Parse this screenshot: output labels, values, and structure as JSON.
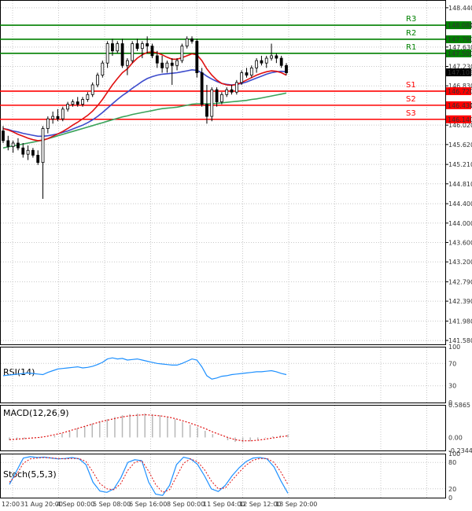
{
  "chart_data": [
    {
      "type": "candlestick",
      "panel": "price",
      "y_ticks": [
        "148.440",
        "148.080",
        "147.630",
        "147.230",
        "146.830",
        "146.430",
        "146.020",
        "145.620",
        "145.210",
        "144.810",
        "144.400",
        "144.000",
        "143.600",
        "143.200",
        "142.790",
        "142.390",
        "141.980",
        "141.580"
      ],
      "ylim": [
        141.5,
        148.6
      ],
      "current_price": "147.108",
      "x_labels": [
        "12:00",
        "31 Aug 20:00",
        "4 Sep 00:00",
        "5 Sep 08:00",
        "6 Sep 16:00",
        "8 Sep 00:00",
        "11 Sep 04:00",
        "12 Sep 12:00",
        "13 Sep 20:00"
      ],
      "levels": [
        {
          "name": "R3",
          "value": 148.08,
          "label": "148.080",
          "color": "#008000"
        },
        {
          "name": "R2",
          "value": 147.79,
          "label": "147.790",
          "color": "#008000"
        },
        {
          "name": "R1",
          "value": 147.5,
          "label": "147.500",
          "color": "#008000"
        },
        {
          "name": "S1",
          "value": 146.72,
          "label": "146.720",
          "color": "#ff0000"
        },
        {
          "name": "S2",
          "value": 146.43,
          "label": "146.430",
          "color": "#ff0000"
        },
        {
          "name": "S3",
          "value": 146.14,
          "label": "146.140",
          "color": "#ff0000"
        }
      ],
      "candles": [
        {
          "o": 145.9,
          "h": 146.0,
          "l": 145.65,
          "c": 145.7
        },
        {
          "o": 145.7,
          "h": 145.8,
          "l": 145.5,
          "c": 145.58
        },
        {
          "o": 145.58,
          "h": 145.7,
          "l": 145.45,
          "c": 145.65
        },
        {
          "o": 145.65,
          "h": 145.75,
          "l": 145.5,
          "c": 145.55
        },
        {
          "o": 145.55,
          "h": 145.65,
          "l": 145.35,
          "c": 145.42
        },
        {
          "o": 145.42,
          "h": 145.6,
          "l": 145.3,
          "c": 145.5
        },
        {
          "o": 145.5,
          "h": 145.55,
          "l": 145.35,
          "c": 145.4
        },
        {
          "o": 145.4,
          "h": 145.5,
          "l": 145.2,
          "c": 145.25
        },
        {
          "o": 145.25,
          "h": 146.0,
          "l": 144.5,
          "c": 145.95
        },
        {
          "o": 145.95,
          "h": 146.2,
          "l": 145.85,
          "c": 146.15
        },
        {
          "o": 146.15,
          "h": 146.3,
          "l": 146.05,
          "c": 146.2
        },
        {
          "o": 146.2,
          "h": 146.35,
          "l": 146.1,
          "c": 146.15
        },
        {
          "o": 146.15,
          "h": 146.4,
          "l": 146.1,
          "c": 146.35
        },
        {
          "o": 146.35,
          "h": 146.5,
          "l": 146.3,
          "c": 146.45
        },
        {
          "o": 146.45,
          "h": 146.55,
          "l": 146.4,
          "c": 146.5
        },
        {
          "o": 146.5,
          "h": 146.6,
          "l": 146.4,
          "c": 146.45
        },
        {
          "o": 146.45,
          "h": 146.6,
          "l": 146.4,
          "c": 146.55
        },
        {
          "o": 146.55,
          "h": 146.7,
          "l": 146.5,
          "c": 146.65
        },
        {
          "o": 146.65,
          "h": 146.9,
          "l": 146.6,
          "c": 146.85
        },
        {
          "o": 146.85,
          "h": 147.1,
          "l": 146.8,
          "c": 147.05
        },
        {
          "o": 147.05,
          "h": 147.35,
          "l": 147.0,
          "c": 147.3
        },
        {
          "o": 147.3,
          "h": 147.75,
          "l": 147.2,
          "c": 147.7
        },
        {
          "o": 147.7,
          "h": 147.8,
          "l": 147.45,
          "c": 147.55
        },
        {
          "o": 147.55,
          "h": 147.75,
          "l": 147.5,
          "c": 147.7
        },
        {
          "o": 147.7,
          "h": 147.8,
          "l": 147.2,
          "c": 147.25
        },
        {
          "o": 147.25,
          "h": 147.4,
          "l": 147.05,
          "c": 147.35
        },
        {
          "o": 147.35,
          "h": 147.75,
          "l": 147.3,
          "c": 147.7
        },
        {
          "o": 147.7,
          "h": 147.8,
          "l": 147.55,
          "c": 147.6
        },
        {
          "o": 147.6,
          "h": 147.75,
          "l": 147.4,
          "c": 147.7
        },
        {
          "o": 147.7,
          "h": 147.85,
          "l": 147.5,
          "c": 147.65
        },
        {
          "o": 147.65,
          "h": 147.7,
          "l": 147.4,
          "c": 147.45
        },
        {
          "o": 147.45,
          "h": 147.55,
          "l": 147.2,
          "c": 147.3
        },
        {
          "o": 147.3,
          "h": 147.45,
          "l": 147.1,
          "c": 147.2
        },
        {
          "o": 147.2,
          "h": 147.35,
          "l": 147.1,
          "c": 147.3
        },
        {
          "o": 147.3,
          "h": 147.4,
          "l": 146.85,
          "c": 147.25
        },
        {
          "o": 147.25,
          "h": 147.4,
          "l": 147.15,
          "c": 147.35
        },
        {
          "o": 147.35,
          "h": 147.7,
          "l": 147.3,
          "c": 147.65
        },
        {
          "o": 147.65,
          "h": 147.85,
          "l": 147.6,
          "c": 147.8
        },
        {
          "o": 147.8,
          "h": 147.85,
          "l": 147.7,
          "c": 147.75
        },
        {
          "o": 147.75,
          "h": 147.8,
          "l": 147.0,
          "c": 147.1
        },
        {
          "o": 147.1,
          "h": 147.2,
          "l": 146.4,
          "c": 146.45
        },
        {
          "o": 146.45,
          "h": 146.85,
          "l": 146.05,
          "c": 146.2
        },
        {
          "o": 146.2,
          "h": 146.8,
          "l": 146.1,
          "c": 146.75
        },
        {
          "o": 146.75,
          "h": 146.8,
          "l": 146.4,
          "c": 146.5
        },
        {
          "o": 146.5,
          "h": 146.7,
          "l": 146.45,
          "c": 146.65
        },
        {
          "o": 146.65,
          "h": 146.8,
          "l": 146.6,
          "c": 146.75
        },
        {
          "o": 146.75,
          "h": 146.85,
          "l": 146.65,
          "c": 146.7
        },
        {
          "o": 146.7,
          "h": 146.95,
          "l": 146.65,
          "c": 146.9
        },
        {
          "o": 146.9,
          "h": 147.15,
          "l": 146.85,
          "c": 147.1
        },
        {
          "o": 147.1,
          "h": 147.2,
          "l": 147.0,
          "c": 147.05
        },
        {
          "o": 147.05,
          "h": 147.25,
          "l": 147.0,
          "c": 147.2
        },
        {
          "o": 147.2,
          "h": 147.4,
          "l": 147.1,
          "c": 147.35
        },
        {
          "o": 147.35,
          "h": 147.45,
          "l": 147.25,
          "c": 147.3
        },
        {
          "o": 147.3,
          "h": 147.45,
          "l": 147.2,
          "c": 147.4
        },
        {
          "o": 147.4,
          "h": 147.7,
          "l": 147.35,
          "c": 147.45
        },
        {
          "o": 147.45,
          "h": 147.5,
          "l": 147.3,
          "c": 147.4
        },
        {
          "o": 147.4,
          "h": 147.45,
          "l": 147.2,
          "c": 147.25
        },
        {
          "o": 147.25,
          "h": 147.3,
          "l": 147.05,
          "c": 147.1
        }
      ],
      "ma_red": [
        145.95,
        145.92,
        145.88,
        145.83,
        145.79,
        145.75,
        145.72,
        145.7,
        145.71,
        145.74,
        145.79,
        145.84,
        145.89,
        145.95,
        146.02,
        146.08,
        146.15,
        146.22,
        146.31,
        146.42,
        146.55,
        146.7,
        146.85,
        146.98,
        147.1,
        147.18,
        147.3,
        147.4,
        147.47,
        147.52,
        147.53,
        147.51,
        147.47,
        147.42,
        147.38,
        147.38,
        147.41,
        147.45,
        147.49,
        147.47,
        147.35,
        147.18,
        147.05,
        146.95,
        146.88,
        146.85,
        146.84,
        146.86,
        146.9,
        146.95,
        147.0,
        147.05,
        147.09,
        147.12,
        147.14,
        147.13,
        147.1,
        147.05
      ],
      "ma_blue": [
        145.95,
        145.93,
        145.9,
        145.88,
        145.85,
        145.83,
        145.81,
        145.79,
        145.79,
        145.8,
        145.82,
        145.84,
        145.87,
        145.9,
        145.94,
        145.98,
        146.02,
        146.07,
        146.13,
        146.2,
        146.28,
        146.37,
        146.46,
        146.55,
        146.63,
        146.7,
        146.78,
        146.85,
        146.92,
        146.98,
        147.02,
        147.05,
        147.07,
        147.08,
        147.09,
        147.1,
        147.12,
        147.14,
        147.16,
        147.15,
        147.1,
        147.03,
        146.97,
        146.92,
        146.88,
        146.86,
        146.85,
        146.86,
        146.88,
        146.91,
        146.95,
        146.99,
        147.03,
        147.07,
        147.1,
        147.12,
        147.13,
        147.12
      ],
      "ma_green": [
        145.55,
        145.57,
        145.59,
        145.61,
        145.63,
        145.65,
        145.67,
        145.69,
        145.71,
        145.74,
        145.77,
        145.8,
        145.83,
        145.86,
        145.89,
        145.92,
        145.95,
        145.98,
        146.01,
        146.04,
        146.07,
        146.1,
        146.13,
        146.16,
        146.19,
        146.21,
        146.24,
        146.26,
        146.28,
        146.3,
        146.32,
        146.34,
        146.36,
        146.37,
        146.38,
        146.39,
        146.41,
        146.43,
        146.45,
        146.46,
        146.46,
        146.46,
        146.46,
        146.47,
        146.48,
        146.49,
        146.5,
        146.51,
        146.52,
        146.53,
        146.55,
        146.56,
        146.58,
        146.6,
        146.62,
        146.64,
        146.66,
        146.68
      ]
    },
    {
      "type": "line",
      "panel": "rsi",
      "title": "RSI(14)",
      "y_ticks": [
        "100",
        "70",
        "30",
        "0"
      ],
      "ylim": [
        0,
        100
      ],
      "values": [
        48,
        49,
        50,
        51,
        52,
        53,
        52,
        51,
        50,
        54,
        57,
        60,
        61,
        62,
        63,
        64,
        62,
        63,
        65,
        68,
        72,
        78,
        80,
        78,
        79,
        76,
        77,
        78,
        76,
        74,
        72,
        70,
        69,
        68,
        67,
        67,
        70,
        74,
        78,
        76,
        64,
        48,
        42,
        44,
        47,
        48,
        50,
        51,
        52,
        53,
        54,
        55,
        55,
        56,
        57,
        55,
        52,
        50
      ]
    },
    {
      "type": "bar",
      "panel": "macd",
      "title": "MACD(12,26,9)",
      "y_ticks": [
        "0.5865",
        "0.00",
        "-0.2344"
      ],
      "ylim": [
        -0.2344,
        0.5865
      ],
      "histogram": [
        -0.05,
        -0.04,
        -0.03,
        -0.02,
        -0.01,
        0.0,
        0.03,
        0.07,
        0.11,
        0.16,
        0.2,
        0.25,
        0.29,
        0.33,
        0.37,
        0.4,
        0.42,
        0.43,
        0.43,
        0.42,
        0.4,
        0.37,
        0.33,
        0.28,
        0.23,
        0.18,
        0.12,
        0.06,
        0.0,
        -0.05,
        -0.08,
        -0.09,
        -0.07,
        -0.04,
        -0.01,
        0.02,
        0.04,
        0.05
      ],
      "signal": [
        -0.04,
        -0.03,
        -0.02,
        -0.01,
        0.0,
        0.02,
        0.05,
        0.08,
        0.12,
        0.16,
        0.2,
        0.24,
        0.28,
        0.31,
        0.34,
        0.37,
        0.39,
        0.4,
        0.41,
        0.4,
        0.39,
        0.37,
        0.34,
        0.3,
        0.26,
        0.21,
        0.16,
        0.1,
        0.05,
        0.0,
        -0.04,
        -0.06,
        -0.06,
        -0.05,
        -0.03,
        -0.01,
        0.01,
        0.03
      ]
    },
    {
      "type": "line",
      "panel": "stoch",
      "title": "Stoch(5,5,3)",
      "y_ticks": [
        "100",
        "80",
        "20",
        "0"
      ],
      "ylim": [
        0,
        100
      ],
      "k": [
        30,
        60,
        90,
        93,
        91,
        92,
        90,
        88,
        89,
        91,
        88,
        75,
        35,
        15,
        12,
        20,
        45,
        80,
        86,
        84,
        35,
        8,
        5,
        28,
        75,
        92,
        88,
        76,
        50,
        20,
        14,
        28,
        50,
        68,
        82,
        90,
        91,
        88,
        70,
        38,
        10
      ],
      "d": [
        35,
        52,
        78,
        88,
        90,
        91,
        90,
        89,
        88,
        89,
        89,
        82,
        58,
        32,
        20,
        18,
        32,
        62,
        80,
        84,
        60,
        30,
        12,
        18,
        48,
        78,
        88,
        82,
        64,
        38,
        20,
        22,
        40,
        58,
        74,
        85,
        89,
        89,
        80,
        58,
        30
      ]
    }
  ]
}
